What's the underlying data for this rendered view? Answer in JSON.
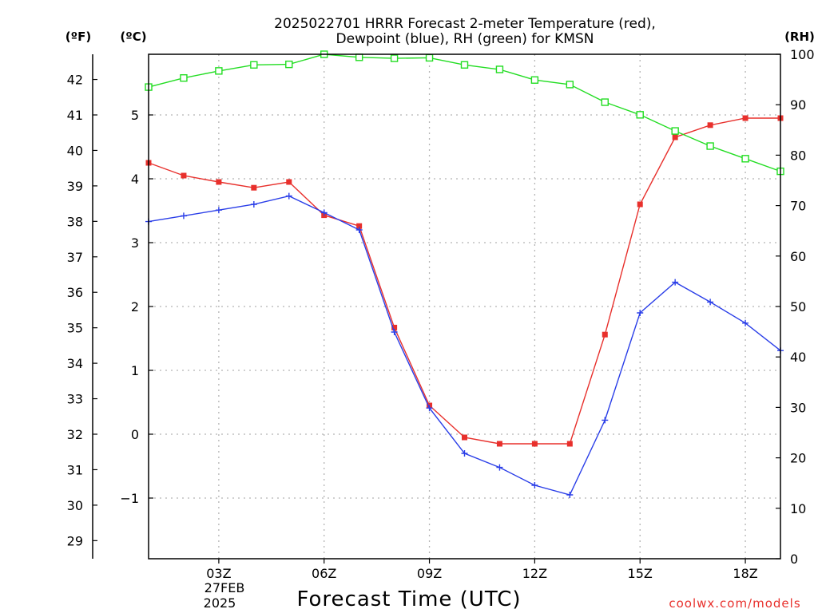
{
  "title": {
    "line1": "2025022701 HRRR Forecast 2-meter Temperature (red),",
    "line2": "Dewpoint (blue), RH (green) for KMSN"
  },
  "units": {
    "fahrenheit": "(ºF)",
    "celsius": "(ºC)",
    "rh": "(RH)"
  },
  "xlabel": "Forecast Time (UTC)",
  "date_label": {
    "day": "27FEB",
    "year": "2025"
  },
  "credit": "coolwx.com/models",
  "colors": {
    "temperature": "#e8302c",
    "dewpoint": "#2a3ee8",
    "rh": "#22dd22",
    "grid": "#b4b4b4",
    "axis": "#000000",
    "credit": "#e8302c"
  },
  "chart_data": {
    "type": "line",
    "title": "2025022701 HRRR Forecast 2-meter Temperature (red), Dewpoint (blue), RH (green) for KMSN",
    "xlabel": "Forecast Time (UTC)",
    "x": [
      1,
      2,
      3,
      4,
      5,
      6,
      7,
      8,
      9,
      10,
      11,
      12,
      13,
      14,
      15,
      16,
      17,
      18,
      19
    ],
    "xlim": [
      1,
      19
    ],
    "x_ticks": [
      {
        "value": 3,
        "label": "03Z"
      },
      {
        "value": 6,
        "label": "06Z"
      },
      {
        "value": 9,
        "label": "09Z"
      },
      {
        "value": 12,
        "label": "12Z"
      },
      {
        "value": 15,
        "label": "15Z"
      },
      {
        "value": 18,
        "label": "18Z"
      }
    ],
    "y_celsius": {
      "lim": [
        -1.95,
        5.95
      ],
      "ticks": [
        -1,
        0,
        1,
        2,
        3,
        4,
        5
      ],
      "tick_labels": [
        "−1",
        "0",
        "1",
        "2",
        "3",
        "4",
        "5"
      ]
    },
    "y_fahrenheit": {
      "ticks": [
        29,
        30,
        31,
        32,
        33,
        34,
        35,
        36,
        37,
        38,
        39,
        40,
        41,
        42
      ],
      "tick_labels": [
        "29",
        "30",
        "31",
        "32",
        "33",
        "34",
        "35",
        "36",
        "37",
        "38",
        "39",
        "40",
        "41",
        "42"
      ]
    },
    "y_rh": {
      "lim": [
        0,
        100
      ],
      "ticks": [
        0,
        10,
        20,
        30,
        40,
        50,
        60,
        70,
        80,
        90,
        100
      ],
      "tick_labels": [
        "0",
        "10",
        "20",
        "30",
        "40",
        "50",
        "60",
        "70",
        "80",
        "90",
        "100"
      ]
    },
    "grid": true,
    "series": [
      {
        "name": "Temperature",
        "axis": "celsius",
        "marker": "filled-square",
        "color": "#e8302c",
        "values": [
          4.25,
          4.05,
          3.95,
          3.86,
          3.95,
          3.43,
          3.26,
          1.67,
          0.45,
          -0.05,
          -0.15,
          -0.15,
          -0.15,
          1.56,
          3.6,
          4.65,
          4.84,
          4.95,
          4.95
        ]
      },
      {
        "name": "Dewpoint",
        "axis": "celsius",
        "marker": "plus",
        "color": "#2a3ee8",
        "values": [
          3.33,
          3.42,
          3.51,
          3.6,
          3.73,
          3.47,
          3.2,
          1.6,
          0.41,
          -0.3,
          -0.52,
          -0.8,
          -0.95,
          0.22,
          1.9,
          2.38,
          2.07,
          1.74,
          1.31
        ]
      },
      {
        "name": "RH",
        "axis": "rh",
        "marker": "open-square",
        "color": "#22dd22",
        "values": [
          93.5,
          95.3,
          96.7,
          97.9,
          98.0,
          100.0,
          99.4,
          99.2,
          99.3,
          97.9,
          97.0,
          94.9,
          94.0,
          90.5,
          88.0,
          84.8,
          81.8,
          79.3,
          76.8
        ]
      }
    ]
  }
}
